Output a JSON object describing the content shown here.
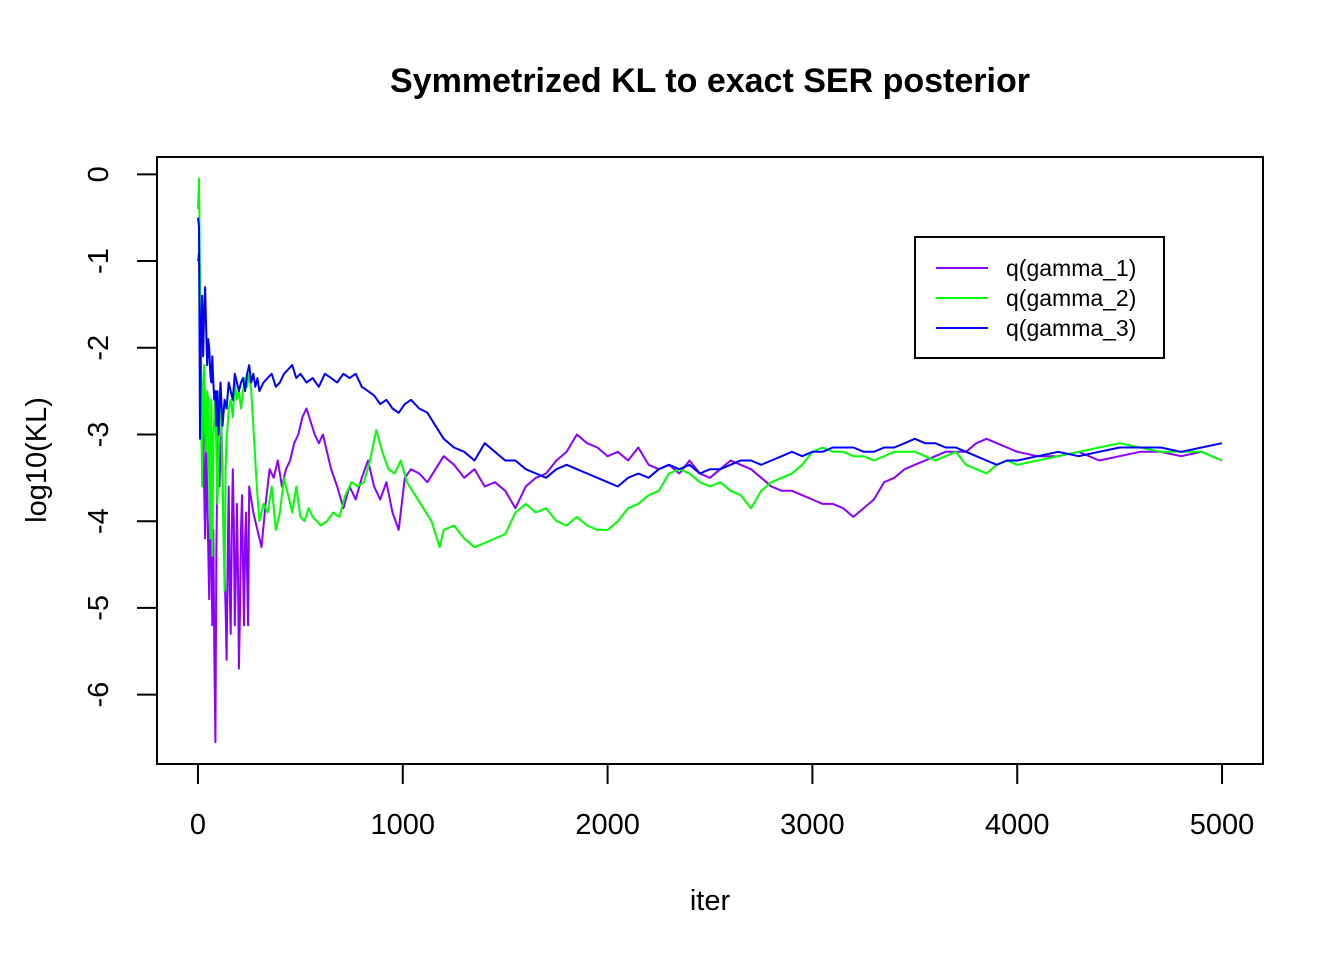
{
  "chart_data": {
    "type": "line",
    "title": "Symmetrized KL to exact SER posterior",
    "xlabel": "iter",
    "ylabel": "log10(KL)",
    "xlim": [
      -200,
      5200
    ],
    "ylim": [
      -6.8,
      0.2
    ],
    "xticks": [
      0,
      1000,
      2000,
      3000,
      4000,
      5000
    ],
    "xtick_labels": [
      "0",
      "1000",
      "2000",
      "3000",
      "4000",
      "5000"
    ],
    "yticks": [
      0,
      -1,
      -2,
      -3,
      -4,
      -5,
      -6
    ],
    "ytick_labels": [
      "0",
      "-1",
      "-2",
      "-3",
      "-4",
      "-5",
      "-6"
    ],
    "grid": false,
    "legend_position": "top-right",
    "series": [
      {
        "name": "q(gamma_1)",
        "color": "#8B00FF",
        "x": [
          0,
          5,
          10,
          15,
          20,
          25,
          30,
          35,
          40,
          45,
          50,
          55,
          60,
          65,
          70,
          75,
          80,
          85,
          90,
          95,
          100,
          105,
          110,
          115,
          120,
          125,
          130,
          135,
          140,
          145,
          150,
          155,
          160,
          165,
          170,
          175,
          180,
          185,
          190,
          195,
          200,
          205,
          210,
          215,
          220,
          225,
          230,
          235,
          240,
          245,
          250,
          270,
          290,
          310,
          330,
          350,
          370,
          390,
          410,
          430,
          450,
          470,
          490,
          510,
          530,
          550,
          570,
          590,
          610,
          630,
          650,
          680,
          710,
          740,
          770,
          800,
          830,
          860,
          890,
          920,
          950,
          980,
          1010,
          1040,
          1080,
          1120,
          1160,
          1200,
          1250,
          1300,
          1350,
          1400,
          1450,
          1500,
          1550,
          1600,
          1650,
          1700,
          1750,
          1800,
          1850,
          1900,
          1950,
          2000,
          2050,
          2100,
          2150,
          2200,
          2250,
          2300,
          2350,
          2400,
          2450,
          2500,
          2550,
          2600,
          2650,
          2700,
          2750,
          2800,
          2850,
          2900,
          2950,
          3000,
          3050,
          3100,
          3150,
          3200,
          3250,
          3300,
          3350,
          3400,
          3450,
          3500,
          3550,
          3600,
          3650,
          3700,
          3750,
          3800,
          3850,
          3900,
          3950,
          4000,
          4100,
          4200,
          4300,
          4400,
          4500,
          4600,
          4700,
          4800,
          4900,
          5000
        ],
        "y": [
          -1.0,
          -0.9,
          -1.5,
          -2.4,
          -3.0,
          -2.6,
          -3.6,
          -4.2,
          -3.0,
          -3.7,
          -4.3,
          -4.9,
          -3.5,
          -4.4,
          -5.2,
          -4.1,
          -5.5,
          -6.55,
          -4.3,
          -3.4,
          -3.0,
          -3.6,
          -3.2,
          -2.9,
          -3.5,
          -4.2,
          -4.6,
          -5.0,
          -5.6,
          -4.4,
          -3.6,
          -4.8,
          -5.3,
          -4.1,
          -3.4,
          -4.0,
          -5.2,
          -4.6,
          -3.8,
          -4.5,
          -5.7,
          -5.1,
          -4.1,
          -3.7,
          -4.5,
          -5.2,
          -4.2,
          -3.9,
          -4.6,
          -5.2,
          -3.6,
          -3.9,
          -4.1,
          -4.3,
          -3.8,
          -3.4,
          -3.5,
          -3.3,
          -3.6,
          -3.4,
          -3.3,
          -3.1,
          -3.0,
          -2.8,
          -2.7,
          -2.85,
          -3.0,
          -3.1,
          -3.0,
          -3.2,
          -3.4,
          -3.6,
          -3.85,
          -3.6,
          -3.75,
          -3.5,
          -3.3,
          -3.6,
          -3.75,
          -3.55,
          -3.9,
          -4.1,
          -3.5,
          -3.4,
          -3.45,
          -3.55,
          -3.4,
          -3.25,
          -3.35,
          -3.5,
          -3.4,
          -3.6,
          -3.55,
          -3.65,
          -3.85,
          -3.6,
          -3.5,
          -3.45,
          -3.3,
          -3.2,
          -3.0,
          -3.1,
          -3.15,
          -3.25,
          -3.2,
          -3.3,
          -3.15,
          -3.35,
          -3.4,
          -3.35,
          -3.45,
          -3.3,
          -3.45,
          -3.5,
          -3.4,
          -3.3,
          -3.35,
          -3.4,
          -3.5,
          -3.6,
          -3.65,
          -3.65,
          -3.7,
          -3.75,
          -3.8,
          -3.8,
          -3.85,
          -3.95,
          -3.85,
          -3.75,
          -3.55,
          -3.5,
          -3.4,
          -3.35,
          -3.3,
          -3.25,
          -3.2,
          -3.2,
          -3.2,
          -3.1,
          -3.05,
          -3.1,
          -3.15,
          -3.2,
          -3.25,
          -3.25,
          -3.2,
          -3.3,
          -3.25,
          -3.2,
          -3.2,
          -3.25,
          -3.2,
          -3.3
        ]
      },
      {
        "name": "q(gamma_2)",
        "color": "#00FF00",
        "x": [
          0,
          5,
          10,
          15,
          20,
          25,
          30,
          35,
          40,
          45,
          50,
          55,
          60,
          65,
          70,
          75,
          80,
          85,
          90,
          95,
          100,
          105,
          110,
          115,
          120,
          125,
          130,
          135,
          140,
          145,
          150,
          160,
          170,
          180,
          190,
          200,
          210,
          220,
          230,
          240,
          250,
          260,
          270,
          280,
          290,
          300,
          320,
          340,
          360,
          380,
          400,
          420,
          440,
          460,
          480,
          500,
          520,
          540,
          560,
          580,
          600,
          630,
          660,
          690,
          720,
          750,
          780,
          810,
          840,
          870,
          900,
          930,
          960,
          990,
          1020,
          1060,
          1100,
          1140,
          1180,
          1200,
          1250,
          1300,
          1350,
          1400,
          1450,
          1500,
          1550,
          1600,
          1650,
          1700,
          1750,
          1800,
          1850,
          1900,
          1950,
          2000,
          2050,
          2100,
          2150,
          2200,
          2250,
          2300,
          2350,
          2400,
          2450,
          2500,
          2550,
          2600,
          2650,
          2700,
          2750,
          2800,
          2850,
          2900,
          2950,
          3000,
          3050,
          3100,
          3150,
          3200,
          3250,
          3300,
          3350,
          3400,
          3450,
          3500,
          3550,
          3600,
          3650,
          3700,
          3750,
          3800,
          3850,
          3900,
          3950,
          4000,
          4100,
          4200,
          4300,
          4400,
          4500,
          4600,
          4700,
          4800,
          4900,
          5000
        ],
        "y": [
          -0.4,
          -0.05,
          -1.2,
          -2.6,
          -3.6,
          -2.4,
          -2.2,
          -3.0,
          -3.2,
          -2.5,
          -2.6,
          -3.5,
          -4.2,
          -2.6,
          -4.4,
          -3.1,
          -2.8,
          -2.5,
          -3.3,
          -3.8,
          -3.4,
          -2.6,
          -2.4,
          -3.0,
          -3.6,
          -4.2,
          -4.8,
          -3.4,
          -3.0,
          -2.9,
          -2.7,
          -2.6,
          -2.8,
          -2.4,
          -2.6,
          -2.5,
          -2.7,
          -2.5,
          -2.35,
          -2.45,
          -2.3,
          -2.5,
          -2.9,
          -3.3,
          -3.7,
          -4.0,
          -3.8,
          -3.9,
          -3.6,
          -4.1,
          -3.9,
          -3.5,
          -3.7,
          -3.9,
          -3.6,
          -3.95,
          -4.0,
          -3.85,
          -3.95,
          -4.0,
          -4.05,
          -4.0,
          -3.9,
          -3.95,
          -3.7,
          -3.55,
          -3.6,
          -3.55,
          -3.3,
          -2.95,
          -3.2,
          -3.4,
          -3.45,
          -3.3,
          -3.55,
          -3.7,
          -3.85,
          -4.0,
          -4.3,
          -4.1,
          -4.05,
          -4.2,
          -4.3,
          -4.25,
          -4.2,
          -4.15,
          -3.9,
          -3.8,
          -3.9,
          -3.85,
          -4.0,
          -4.05,
          -3.95,
          -4.05,
          -4.1,
          -4.1,
          -4.0,
          -3.85,
          -3.8,
          -3.7,
          -3.65,
          -3.45,
          -3.4,
          -3.45,
          -3.55,
          -3.6,
          -3.55,
          -3.65,
          -3.7,
          -3.85,
          -3.65,
          -3.55,
          -3.5,
          -3.45,
          -3.35,
          -3.2,
          -3.15,
          -3.2,
          -3.2,
          -3.25,
          -3.25,
          -3.3,
          -3.25,
          -3.2,
          -3.2,
          -3.2,
          -3.25,
          -3.3,
          -3.25,
          -3.2,
          -3.35,
          -3.4,
          -3.45,
          -3.35,
          -3.3,
          -3.35,
          -3.3,
          -3.25,
          -3.2,
          -3.15,
          -3.1,
          -3.15,
          -3.2,
          -3.2,
          -3.2,
          -3.3
        ]
      },
      {
        "name": "q(gamma_3)",
        "color": "#0000FF",
        "x": [
          0,
          5,
          10,
          15,
          20,
          25,
          30,
          35,
          40,
          45,
          50,
          55,
          60,
          65,
          70,
          75,
          80,
          85,
          90,
          95,
          100,
          110,
          120,
          130,
          140,
          150,
          160,
          170,
          180,
          190,
          200,
          210,
          220,
          230,
          240,
          250,
          260,
          270,
          280,
          290,
          300,
          320,
          340,
          360,
          380,
          400,
          420,
          440,
          460,
          480,
          500,
          530,
          560,
          590,
          620,
          650,
          680,
          710,
          740,
          770,
          800,
          830,
          860,
          890,
          920,
          950,
          980,
          1010,
          1040,
          1080,
          1120,
          1160,
          1200,
          1250,
          1300,
          1350,
          1400,
          1450,
          1500,
          1550,
          1600,
          1650,
          1700,
          1750,
          1800,
          1850,
          1900,
          1950,
          2000,
          2050,
          2100,
          2150,
          2200,
          2250,
          2300,
          2350,
          2400,
          2450,
          2500,
          2550,
          2600,
          2650,
          2700,
          2750,
          2800,
          2850,
          2900,
          2950,
          3000,
          3050,
          3100,
          3150,
          3200,
          3250,
          3300,
          3350,
          3400,
          3450,
          3500,
          3550,
          3600,
          3650,
          3700,
          3750,
          3800,
          3850,
          3900,
          3950,
          4000,
          4100,
          4200,
          4300,
          4400,
          4500,
          4600,
          4700,
          4800,
          4900,
          5000
        ],
        "y": [
          -0.5,
          -0.6,
          -3.05,
          -1.8,
          -1.4,
          -2.1,
          -1.6,
          -1.3,
          -1.8,
          -2.2,
          -1.9,
          -2.0,
          -2.3,
          -2.4,
          -2.1,
          -2.4,
          -2.6,
          -2.5,
          -2.9,
          -2.5,
          -3.0,
          -2.4,
          -2.9,
          -2.6,
          -2.7,
          -2.4,
          -2.5,
          -2.6,
          -2.3,
          -2.4,
          -2.5,
          -2.4,
          -2.35,
          -2.5,
          -2.3,
          -2.2,
          -2.4,
          -2.3,
          -2.45,
          -2.35,
          -2.5,
          -2.4,
          -2.35,
          -2.3,
          -2.45,
          -2.4,
          -2.3,
          -2.25,
          -2.2,
          -2.35,
          -2.3,
          -2.4,
          -2.35,
          -2.45,
          -2.3,
          -2.35,
          -2.4,
          -2.3,
          -2.35,
          -2.3,
          -2.45,
          -2.5,
          -2.55,
          -2.65,
          -2.6,
          -2.7,
          -2.75,
          -2.65,
          -2.6,
          -2.7,
          -2.75,
          -2.9,
          -3.05,
          -3.15,
          -3.2,
          -3.3,
          -3.1,
          -3.2,
          -3.3,
          -3.3,
          -3.4,
          -3.45,
          -3.5,
          -3.4,
          -3.35,
          -3.4,
          -3.45,
          -3.5,
          -3.55,
          -3.6,
          -3.5,
          -3.45,
          -3.5,
          -3.4,
          -3.35,
          -3.4,
          -3.35,
          -3.45,
          -3.4,
          -3.4,
          -3.35,
          -3.3,
          -3.3,
          -3.35,
          -3.3,
          -3.25,
          -3.2,
          -3.25,
          -3.2,
          -3.2,
          -3.15,
          -3.15,
          -3.15,
          -3.2,
          -3.2,
          -3.15,
          -3.15,
          -3.1,
          -3.05,
          -3.1,
          -3.1,
          -3.15,
          -3.15,
          -3.2,
          -3.25,
          -3.3,
          -3.35,
          -3.3,
          -3.3,
          -3.25,
          -3.2,
          -3.25,
          -3.2,
          -3.15,
          -3.15,
          -3.15,
          -3.2,
          -3.15,
          -3.1
        ]
      }
    ]
  }
}
